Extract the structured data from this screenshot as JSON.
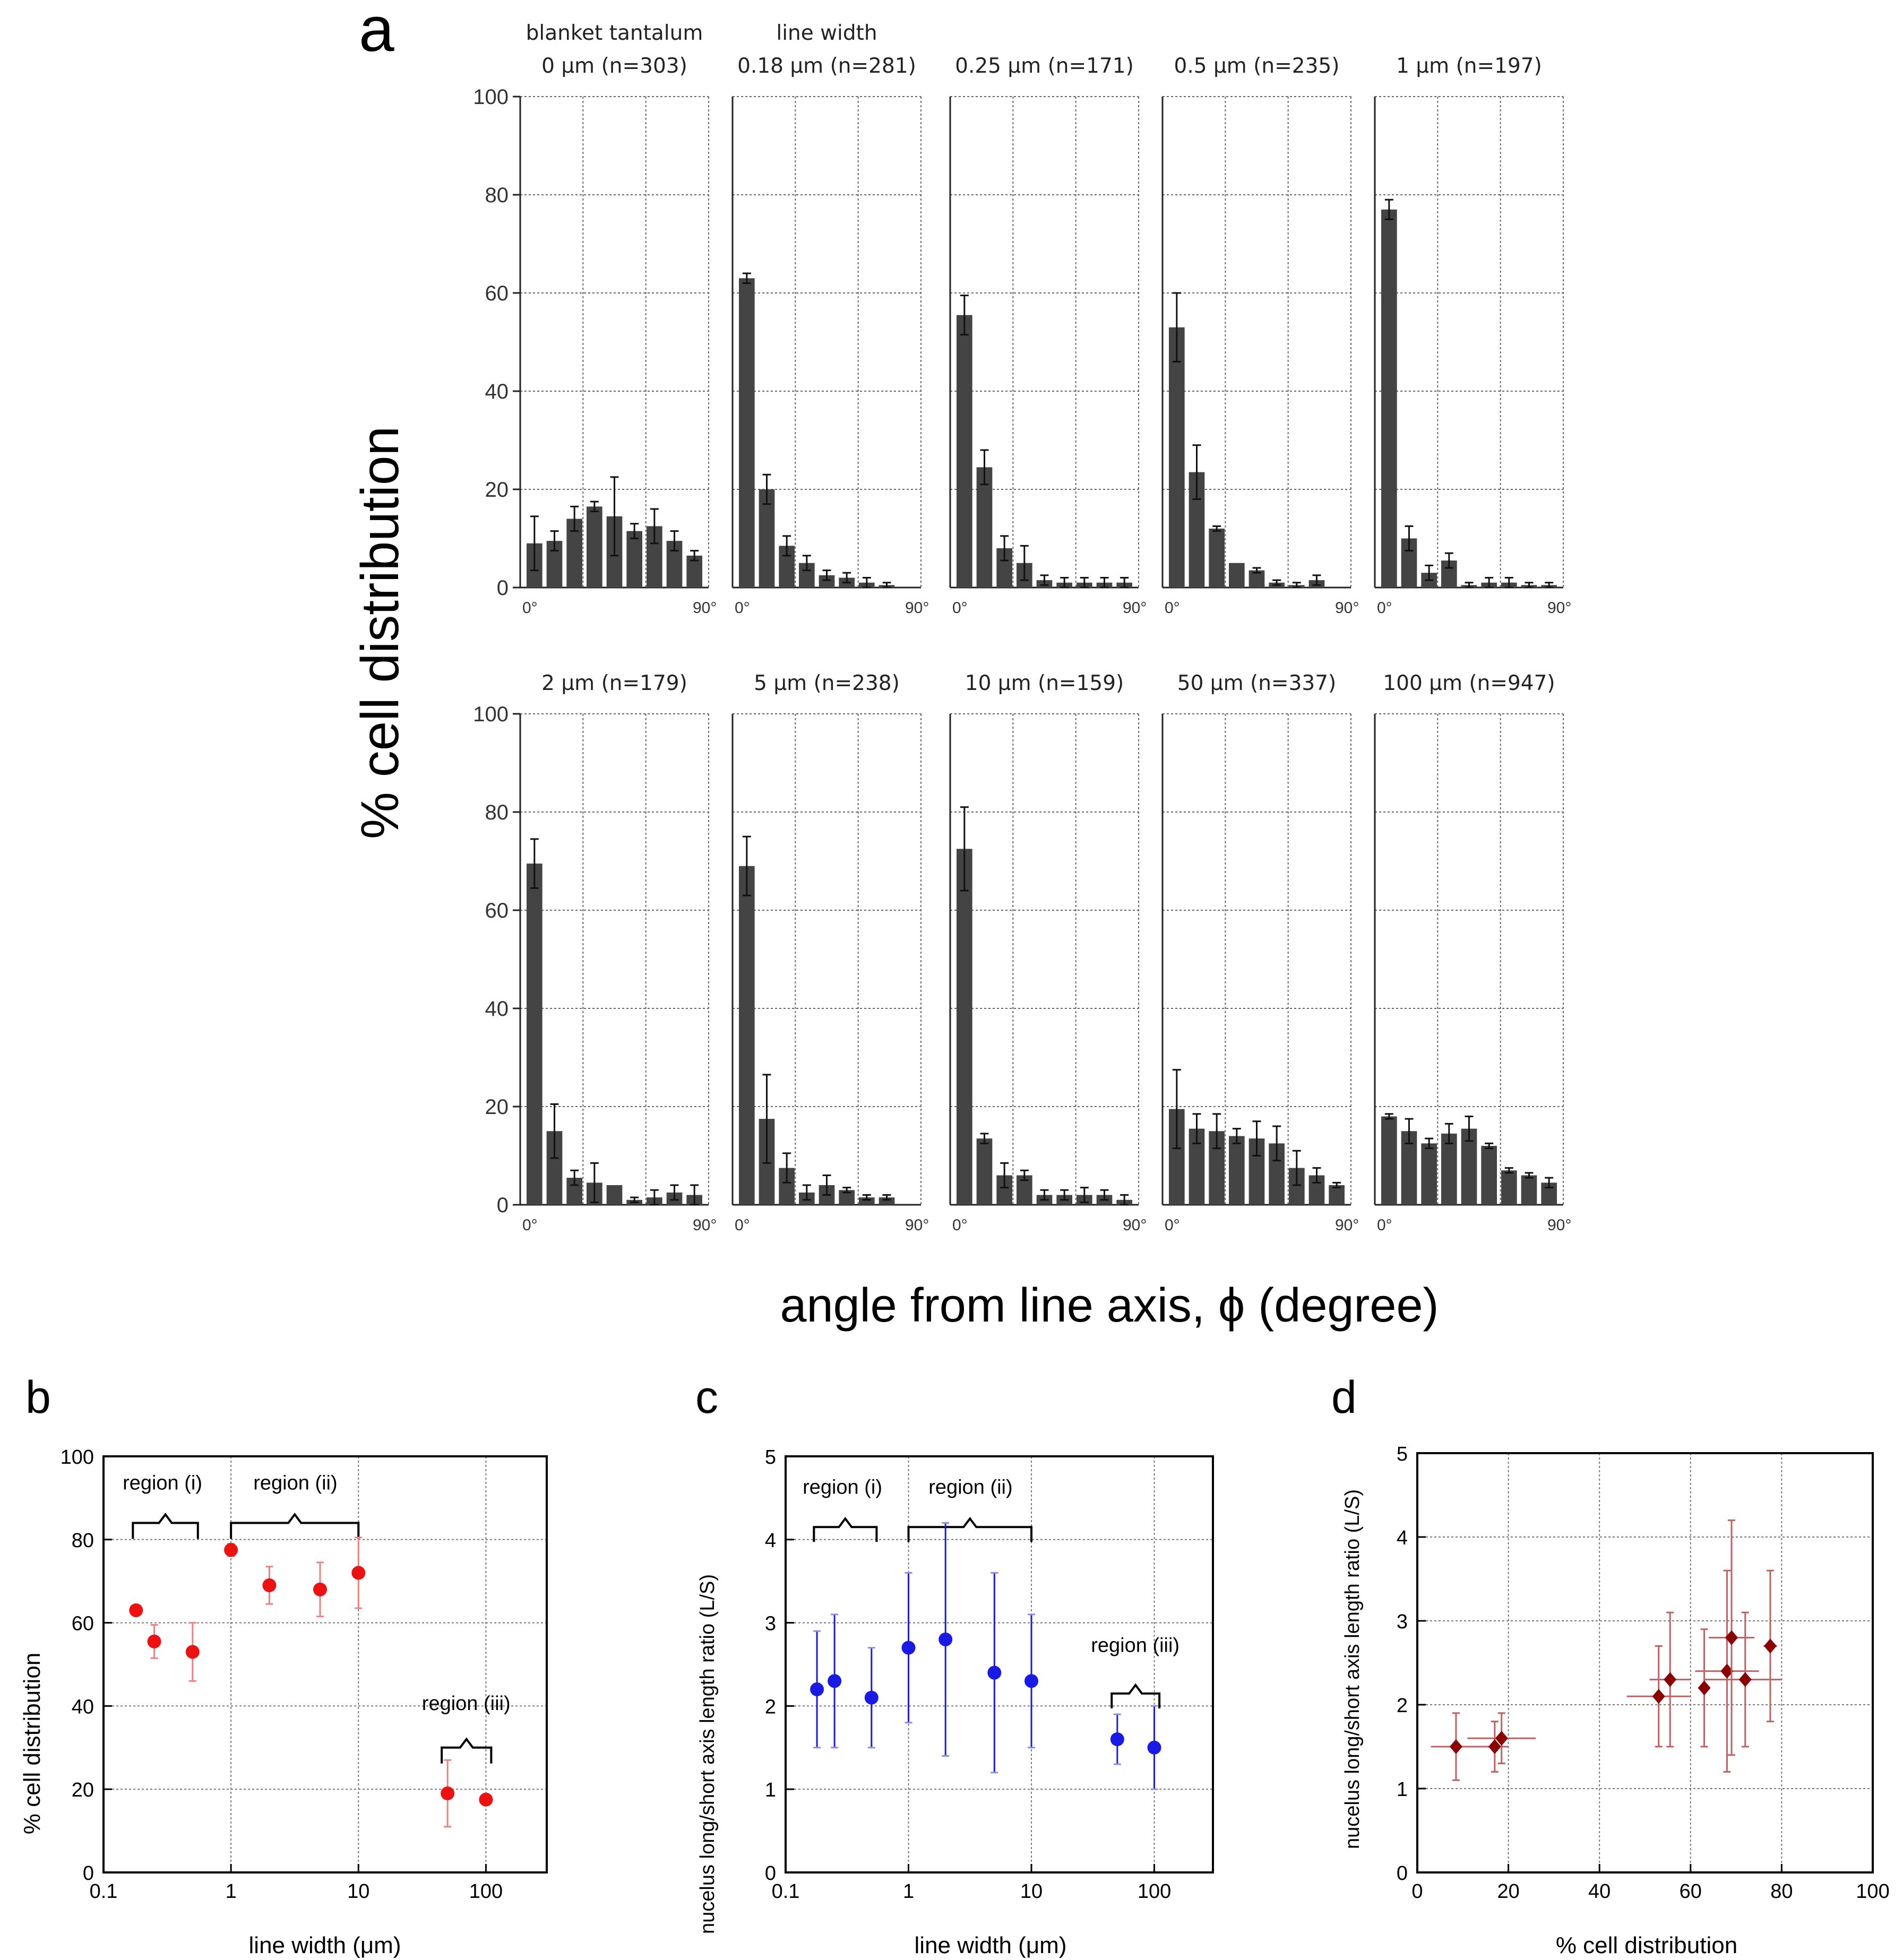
{
  "figure": {
    "panel_letters": {
      "a": "a",
      "b": "b",
      "c": "c",
      "d": "d"
    }
  },
  "colors": {
    "bar": "#444444",
    "red": "#ee1111",
    "red_err": "#f08080",
    "blue": "#1a1ae6",
    "blue_err": "#8c8cf0",
    "darkred": "#8b0000",
    "darkred_err": "#c06060"
  },
  "chart_data": [
    {
      "id": "a",
      "type": "bar",
      "ylabel": "% cell distribution",
      "xlabel": "angle from line axis, ϕ (degree)",
      "y_ticks": [
        "0",
        "20",
        "40",
        "60",
        "80",
        "100"
      ],
      "ylim": [
        0,
        100
      ],
      "x_tick_left": "0°",
      "x_tick_right": "90°",
      "bins": 9,
      "panels": [
        {
          "title": [
            "blanket tantalum",
            "0 μm  (n=303)"
          ],
          "values": [
            9,
            9.5,
            14,
            16.5,
            14.5,
            11.5,
            12.5,
            9.5,
            6.5
          ],
          "errors": [
            5.5,
            2,
            2.5,
            1,
            8,
            1.5,
            3.5,
            2,
            1
          ]
        },
        {
          "title": [
            "line width",
            "0.18 μm (n=281)"
          ],
          "values": [
            63,
            20,
            8.5,
            5,
            2.5,
            2,
            1,
            0.5,
            0
          ],
          "errors": [
            1,
            3,
            2,
            1.5,
            1,
            1,
            1,
            0.5,
            0
          ]
        },
        {
          "title": [
            "0.25 μm (n=171)"
          ],
          "values": [
            55.5,
            24.5,
            8,
            5,
            1.5,
            1,
            1,
            1,
            1
          ],
          "errors": [
            4,
            3.5,
            2.5,
            3.5,
            1,
            1,
            1,
            1,
            1
          ]
        },
        {
          "title": [
            "0.5 μm (n=235)"
          ],
          "values": [
            53,
            23.5,
            12,
            5,
            3.5,
            1,
            0.5,
            1.5,
            0
          ],
          "errors": [
            7,
            5.5,
            0.5,
            0,
            0.5,
            0.5,
            0.5,
            1,
            0
          ]
        },
        {
          "title": [
            "1 μm (n=197)"
          ],
          "values": [
            77,
            10,
            3,
            5.5,
            0.5,
            1,
            1,
            0.5,
            0.5
          ],
          "errors": [
            2,
            2.5,
            1.5,
            1.5,
            0.5,
            1,
            1,
            0.5,
            0.5
          ]
        },
        {
          "title": [
            "2 μm (n=179)"
          ],
          "values": [
            69.5,
            15,
            5.5,
            4.5,
            4,
            1,
            1.5,
            2.5,
            2
          ],
          "errors": [
            5,
            5.5,
            1.5,
            4,
            0,
            0.5,
            1.5,
            1.5,
            2
          ]
        },
        {
          "title": [
            "5 μm (n=238)"
          ],
          "values": [
            69,
            17.5,
            7.5,
            2.5,
            4,
            3,
            1.5,
            1.5,
            0
          ],
          "errors": [
            6,
            9,
            3,
            1.5,
            2,
            0.5,
            0.5,
            0.5,
            0
          ]
        },
        {
          "title": [
            "10 μm (n=159)"
          ],
          "values": [
            72.5,
            13.5,
            6,
            6,
            2,
            2,
            2,
            2,
            1
          ],
          "errors": [
            8.5,
            1,
            2.5,
            1,
            1,
            1,
            1.5,
            1,
            1
          ]
        },
        {
          "title": [
            "50 μm (n=337)"
          ],
          "values": [
            19.5,
            15.5,
            15,
            14,
            13.5,
            12.5,
            7.5,
            6,
            4
          ],
          "errors": [
            8,
            3,
            3.5,
            1.5,
            3.5,
            3.5,
            3.5,
            1.5,
            0.5
          ]
        },
        {
          "title": [
            "100 μm (n=947)"
          ],
          "values": [
            18,
            15,
            12.5,
            14.5,
            15.5,
            12,
            7,
            6,
            4.5
          ],
          "errors": [
            0.5,
            2.5,
            1,
            2,
            2.5,
            0.5,
            0.5,
            0.5,
            1
          ]
        }
      ]
    },
    {
      "id": "b",
      "type": "scatter",
      "xlabel": "line width (μm)",
      "ylabel": "% cell distribution",
      "xscale": "log",
      "xlim": [
        0.1,
        300
      ],
      "ylim": [
        0,
        100
      ],
      "x_ticks": [
        "0.1",
        "1",
        "10",
        "100"
      ],
      "y_ticks": [
        "0",
        "20",
        "40",
        "60",
        "80",
        "100"
      ],
      "regions": [
        "region (i)",
        "region (ii)",
        "region (iii)"
      ],
      "points": [
        {
          "x": 0.18,
          "y": 63,
          "yerr": 1
        },
        {
          "x": 0.25,
          "y": 55.5,
          "yerr": 4
        },
        {
          "x": 0.5,
          "y": 53,
          "yerr": 7
        },
        {
          "x": 1,
          "y": 77.5,
          "yerr": 1.5
        },
        {
          "x": 2,
          "y": 69,
          "yerr": 4.5
        },
        {
          "x": 5,
          "y": 68,
          "yerr": 6.5
        },
        {
          "x": 10,
          "y": 72,
          "yerr": 8.5
        },
        {
          "x": 50,
          "y": 19,
          "yerr": 8
        },
        {
          "x": 100,
          "y": 17.5,
          "yerr": 0.5
        }
      ]
    },
    {
      "id": "c",
      "type": "scatter",
      "xlabel": "line width (μm)",
      "ylabel": "nucelus long/short axis length ratio (L/S)",
      "xscale": "log",
      "xlim": [
        0.1,
        300
      ],
      "ylim": [
        0,
        5
      ],
      "x_ticks": [
        "0.1",
        "1",
        "10",
        "100"
      ],
      "y_ticks": [
        "0",
        "1",
        "2",
        "3",
        "4",
        "5"
      ],
      "regions": [
        "region (i)",
        "region (ii)",
        "region (iii)"
      ],
      "points": [
        {
          "x": 0.18,
          "y": 2.2,
          "ylo": 1.5,
          "yhi": 2.9
        },
        {
          "x": 0.25,
          "y": 2.3,
          "ylo": 1.5,
          "yhi": 3.1
        },
        {
          "x": 0.5,
          "y": 2.1,
          "ylo": 1.5,
          "yhi": 2.7
        },
        {
          "x": 1,
          "y": 2.7,
          "ylo": 1.8,
          "yhi": 3.6
        },
        {
          "x": 2,
          "y": 2.8,
          "ylo": 1.4,
          "yhi": 4.2
        },
        {
          "x": 5,
          "y": 2.4,
          "ylo": 1.2,
          "yhi": 3.6
        },
        {
          "x": 10,
          "y": 2.3,
          "ylo": 1.5,
          "yhi": 3.1
        },
        {
          "x": 50,
          "y": 1.6,
          "ylo": 1.3,
          "yhi": 1.9
        },
        {
          "x": 100,
          "y": 1.5,
          "ylo": 1.0,
          "yhi": 2.0
        }
      ]
    },
    {
      "id": "d",
      "type": "scatter",
      "xlabel": "% cell distribution",
      "ylabel": "nucelus long/short axis length ratio (L/S)",
      "xlim": [
        0,
        100
      ],
      "ylim": [
        0,
        5
      ],
      "x_ticks": [
        "0",
        "20",
        "40",
        "60",
        "80",
        "100"
      ],
      "y_ticks": [
        "0",
        "1",
        "2",
        "3",
        "4",
        "5"
      ],
      "points": [
        {
          "x": 8.5,
          "y": 1.5,
          "xlo": 3,
          "xhi": 14,
          "ylo": 1.1,
          "yhi": 1.9
        },
        {
          "x": 17,
          "y": 1.5,
          "xlo": 14,
          "xhi": 20,
          "ylo": 1.2,
          "yhi": 1.8
        },
        {
          "x": 18.5,
          "y": 1.6,
          "xlo": 11,
          "xhi": 26,
          "ylo": 1.3,
          "yhi": 1.9
        },
        {
          "x": 53,
          "y": 2.1,
          "xlo": 46,
          "xhi": 60,
          "ylo": 1.5,
          "yhi": 2.7
        },
        {
          "x": 55.5,
          "y": 2.3,
          "xlo": 51,
          "xhi": 60,
          "ylo": 1.5,
          "yhi": 3.1
        },
        {
          "x": 63,
          "y": 2.2,
          "xlo": 62,
          "xhi": 64,
          "ylo": 1.5,
          "yhi": 2.9
        },
        {
          "x": 68,
          "y": 2.4,
          "xlo": 61,
          "xhi": 75,
          "ylo": 1.2,
          "yhi": 3.6
        },
        {
          "x": 69,
          "y": 2.8,
          "xlo": 64,
          "xhi": 74,
          "ylo": 1.4,
          "yhi": 4.2
        },
        {
          "x": 72,
          "y": 2.3,
          "xlo": 63,
          "xhi": 80,
          "ylo": 1.5,
          "yhi": 3.1
        },
        {
          "x": 77.5,
          "y": 2.7,
          "xlo": 76,
          "xhi": 79,
          "ylo": 1.8,
          "yhi": 3.6
        }
      ]
    }
  ]
}
